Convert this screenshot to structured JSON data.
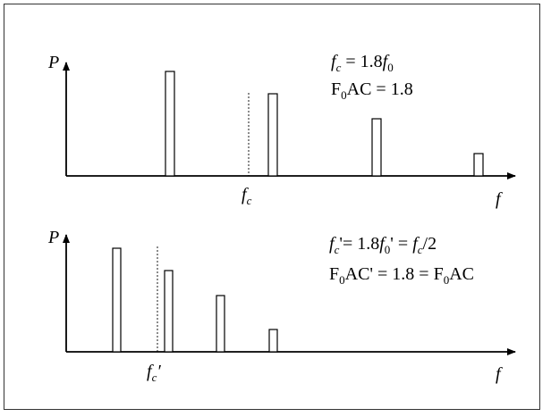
{
  "panels": [
    {
      "y_label": "P",
      "x_label": "f",
      "marker_label": {
        "symbol": "f",
        "sub": "c",
        "prime": ""
      },
      "formula_line1": [
        {
          "t": "f",
          "i": true
        },
        {
          "t": "c",
          "sub": true,
          "i": true
        },
        {
          "t": " = 1.8"
        },
        {
          "t": "f",
          "i": true
        },
        {
          "t": "0",
          "sub": true
        }
      ],
      "formula_line2": [
        {
          "t": "F"
        },
        {
          "t": "0",
          "sub": true
        },
        {
          "t": "AC = 1.8"
        }
      ]
    },
    {
      "y_label": "P",
      "x_label": "f",
      "marker_label": {
        "symbol": "f",
        "sub": "c",
        "prime": "′"
      },
      "formula_line1": [
        {
          "t": "f",
          "i": true
        },
        {
          "t": "c",
          "sub": true,
          "i": true
        },
        {
          "t": "'= 1.8"
        },
        {
          "t": "f",
          "i": true
        },
        {
          "t": "0",
          "sub": true
        },
        {
          "t": "' = "
        },
        {
          "t": "f",
          "i": true
        },
        {
          "t": "c",
          "sub": true,
          "i": true
        },
        {
          "t": "/2"
        }
      ],
      "formula_line2": [
        {
          "t": "F"
        },
        {
          "t": "0",
          "sub": true
        },
        {
          "t": "AC' = 1.8 = F"
        },
        {
          "t": "0",
          "sub": true
        },
        {
          "t": "AC"
        }
      ]
    }
  ],
  "colors": {
    "ink": "#000000",
    "frame": "#333333"
  }
}
